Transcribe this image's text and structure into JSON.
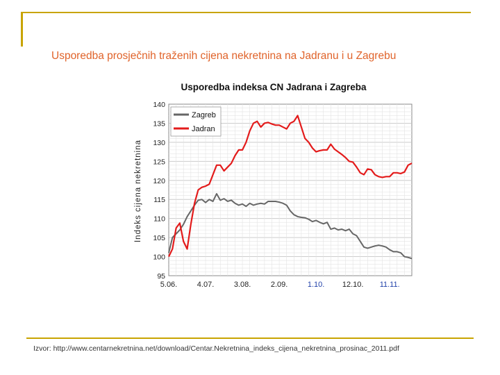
{
  "slide": {
    "title": "Usporedba prosječnih traženih cijena nekretnina na Jadranu i u Zagrebu",
    "source": "Izvor:  http://www.centarnekretnina.net/download/Centar.Nekretnina_indeks_cijena_nekretnina_prosinac_2011.pdf"
  },
  "colors": {
    "frame": "#c8a400",
    "title": "#e0632a",
    "zagreb": "#666666",
    "jadran": "#e31b1b"
  },
  "chart_data": {
    "type": "line",
    "title": "Usporedba indeksa CN Jadrana i Zagreba",
    "ylabel": "Indeks cijena nekretnina",
    "xlabel": "",
    "ylim": [
      95,
      140
    ],
    "yticks": [
      95,
      100,
      105,
      110,
      115,
      120,
      125,
      130,
      135,
      140
    ],
    "xlim": [
      0,
      66
    ],
    "xticks": [
      {
        "x": 0,
        "label": "5.06."
      },
      {
        "x": 10,
        "label": "4.07."
      },
      {
        "x": 20,
        "label": "3.08."
      },
      {
        "x": 30,
        "label": "2.09."
      },
      {
        "x": 40,
        "label": "1.10."
      },
      {
        "x": 50,
        "label": "12.10."
      },
      {
        "x": 60,
        "label": "11.11."
      }
    ],
    "grid": true,
    "legend": "top-left",
    "series": [
      {
        "name": "Zagreb",
        "color": "#666666",
        "values": [
          101,
          105,
          106,
          107,
          108.5,
          110.5,
          112,
          113.5,
          114.8,
          115,
          114.2,
          115,
          114.5,
          116.5,
          114.8,
          115.2,
          114.5,
          114.8,
          114,
          113.5,
          113.8,
          113.2,
          114,
          113.5,
          113.8,
          114,
          113.8,
          114.5,
          114.5,
          114.5,
          114.3,
          114,
          113.5,
          112,
          111,
          110.5,
          110.3,
          110.2,
          109.8,
          109.2,
          109.5,
          109,
          108.6,
          109,
          107.2,
          107.5,
          107,
          107.2,
          106.8,
          107.2,
          106,
          105.5,
          104,
          102.5,
          102.2,
          102.5,
          102.8,
          103,
          102.8,
          102.5,
          101.8,
          101.3,
          101.3,
          101,
          100,
          99.8,
          99.5
        ]
      },
      {
        "name": "Jadran",
        "color": "#e31b1b",
        "values": [
          100,
          102,
          107.5,
          108.8,
          104,
          102,
          108.5,
          114,
          117.5,
          118.2,
          118.5,
          119,
          121.5,
          124,
          124,
          122.5,
          123.5,
          124.5,
          126.5,
          128,
          128,
          130,
          133,
          135,
          135.5,
          134,
          135,
          135.2,
          134.8,
          134.5,
          134.5,
          134,
          133.5,
          135,
          135.5,
          137,
          134,
          131,
          130,
          128.5,
          127.5,
          127.8,
          128,
          128,
          129.5,
          128.2,
          127.5,
          126.8,
          126,
          125,
          124.8,
          123.5,
          122,
          121.5,
          123,
          122.8,
          121.5,
          121,
          120.8,
          121,
          121,
          122,
          122,
          121.8,
          122.2,
          124,
          124.5
        ]
      }
    ]
  }
}
